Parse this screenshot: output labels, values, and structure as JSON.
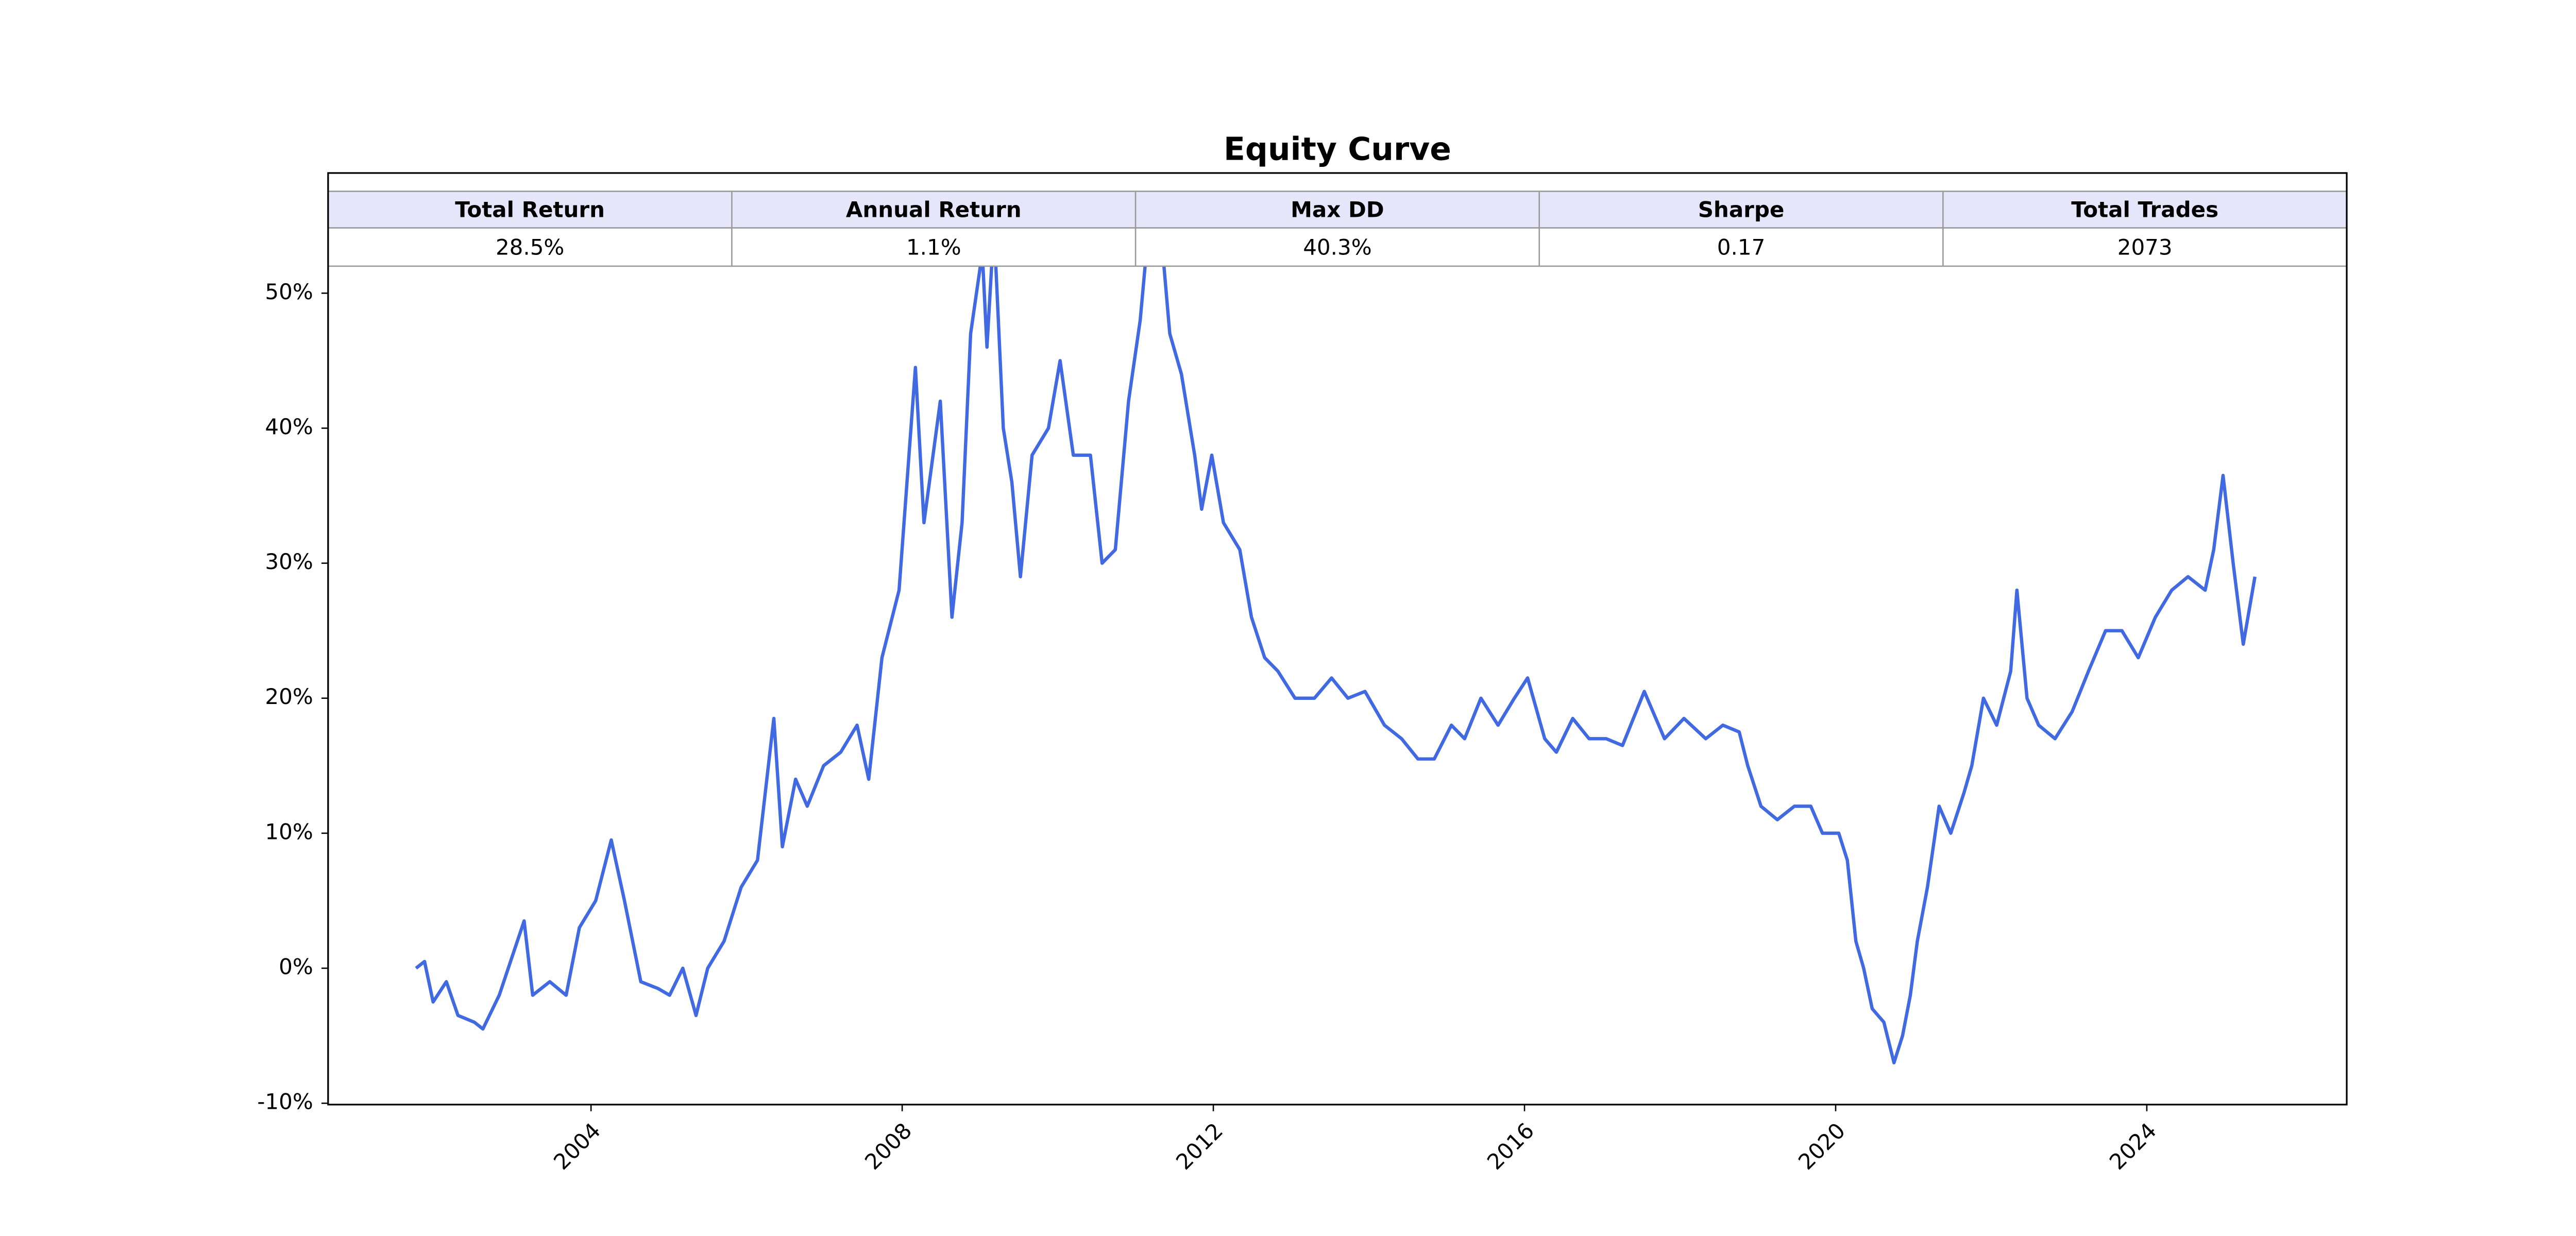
{
  "chart_data": {
    "type": "line",
    "title": "Equity Curve",
    "color": "#4169e1",
    "x": [
      2001.75,
      2001.86,
      2001.97,
      2002.14,
      2002.29,
      2002.5,
      2002.61,
      2002.82,
      2003.14,
      2003.25,
      2003.47,
      2003.68,
      2003.85,
      2004.06,
      2004.26,
      2004.43,
      2004.64,
      2004.86,
      2005.01,
      2005.18,
      2005.35,
      2005.5,
      2005.71,
      2005.93,
      2006.14,
      2006.35,
      2006.46,
      2006.63,
      2006.78,
      2006.99,
      2007.21,
      2007.42,
      2007.57,
      2007.74,
      2007.96,
      2008.17,
      2008.28,
      2008.49,
      2008.64,
      2008.77,
      2008.88,
      2009.03,
      2009.09,
      2009.18,
      2009.3,
      2009.41,
      2009.52,
      2009.67,
      2009.88,
      2010.03,
      2010.2,
      2010.42,
      2010.57,
      2010.74,
      2010.91,
      2011.06,
      2011.17,
      2011.32,
      2011.44,
      2011.59,
      2011.76,
      2011.85,
      2011.98,
      2012.13,
      2012.34,
      2012.49,
      2012.66,
      2012.83,
      2013.05,
      2013.3,
      2013.52,
      2013.73,
      2013.95,
      2014.2,
      2014.42,
      2014.63,
      2014.84,
      2015.06,
      2015.23,
      2015.44,
      2015.66,
      2015.87,
      2016.04,
      2016.26,
      2016.41,
      2016.62,
      2016.83,
      2017.05,
      2017.26,
      2017.54,
      2017.8,
      2018.05,
      2018.33,
      2018.55,
      2018.76,
      2018.87,
      2019.04,
      2019.25,
      2019.47,
      2019.68,
      2019.83,
      2020.04,
      2020.15,
      2020.26,
      2020.36,
      2020.47,
      2020.62,
      2020.75,
      2020.86,
      2020.96,
      2021.05,
      2021.18,
      2021.33,
      2021.48,
      2021.65,
      2021.75,
      2021.9,
      2022.07,
      2022.25,
      2022.33,
      2022.46,
      2022.61,
      2022.82,
      2023.04,
      2023.25,
      2023.47,
      2023.68,
      2023.89,
      2024.11,
      2024.32,
      2024.53,
      2024.75,
      2024.86,
      2024.98,
      2025.11,
      2025.24,
      2025.33,
      2025.39
    ],
    "values": [
      0,
      0.5,
      -2.5,
      -1,
      -3.5,
      -4,
      -4.5,
      -2,
      3.5,
      -2,
      -1,
      -2,
      3,
      5,
      9.5,
      5,
      -1,
      -1.5,
      -2,
      0,
      -3.5,
      0,
      2,
      6,
      8,
      18.5,
      9,
      14,
      12,
      15,
      16,
      18,
      14,
      23,
      28,
      44.5,
      33,
      42,
      26,
      33,
      47,
      53,
      46,
      55,
      40,
      36,
      29,
      38,
      40,
      45,
      38,
      38,
      30,
      31,
      42,
      48,
      55,
      55,
      47,
      44,
      38,
      34,
      38,
      33,
      31,
      26,
      23,
      22,
      20,
      20,
      21.5,
      20,
      20.5,
      18,
      17,
      15.5,
      15.5,
      18,
      17,
      20,
      18,
      20,
      21.5,
      17,
      16,
      18.5,
      17,
      17,
      16.5,
      20.5,
      17,
      18.5,
      17,
      18,
      17.5,
      15,
      12,
      11,
      12,
      12,
      10,
      10,
      8,
      2,
      0,
      -3,
      -4,
      -7,
      -5,
      -2,
      2,
      6,
      12,
      10,
      13,
      15,
      20,
      18,
      22,
      28,
      20,
      18,
      17,
      19,
      22,
      25,
      25,
      23,
      26,
      28,
      29,
      28,
      31,
      36.5,
      30,
      24,
      27,
      29
    ],
    "xlim": [
      2000.62,
      2026.57
    ],
    "xticks": [
      2004,
      2008,
      2012,
      2016,
      2020,
      2024
    ],
    "ylim": [
      -10.1,
      58.9
    ],
    "yticks": [
      {
        "value": -10,
        "label": "-10%"
      },
      {
        "value": 0,
        "label": "0%"
      },
      {
        "value": 10,
        "label": "10%"
      },
      {
        "value": 20,
        "label": "20%"
      },
      {
        "value": 30,
        "label": "30%"
      },
      {
        "value": 40,
        "label": "40%"
      },
      {
        "value": 50,
        "label": "50%"
      }
    ],
    "table": {
      "columns": [
        "Total Return",
        "Annual Return",
        "Max DD",
        "Sharpe",
        "Total Trades"
      ],
      "rows": [
        [
          "28.5%",
          "1.1%",
          "40.3%",
          "0.17",
          "2073"
        ]
      ]
    }
  }
}
